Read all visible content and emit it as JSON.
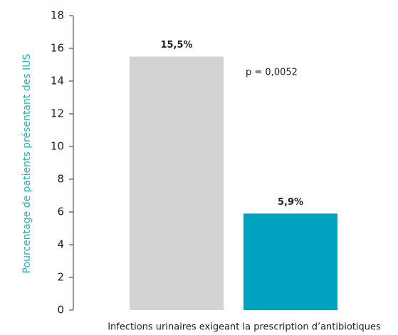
{
  "chart_data": {
    "type": "bar",
    "categories": [
      null,
      null
    ],
    "values": [
      15.5,
      5.9
    ],
    "value_labels": [
      "15,5%",
      "5,9%"
    ],
    "colors": [
      "#d3d3d3",
      "#00a3bf"
    ],
    "ylabel": "Pourcentage de patients présentant des IUS",
    "xlabel": "Infections urinaires exigeant la prescription d’antibiotiques",
    "annotation": "p = 0,0052",
    "ylim": [
      0,
      18
    ],
    "yticks": [
      0,
      2,
      4,
      6,
      8,
      10,
      12,
      14,
      16,
      18
    ]
  }
}
